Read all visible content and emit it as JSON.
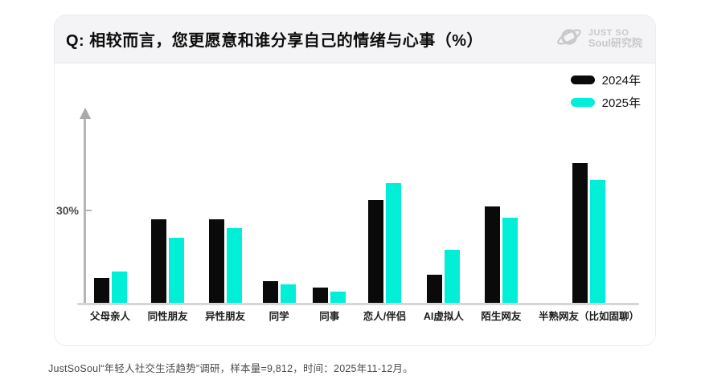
{
  "header": {
    "title": "Q: 相较而言，您更愿意和谁分享自己的情绪与心事（%）",
    "brand_line1": "JUST SO",
    "brand_line2": "Soul研究院"
  },
  "chart_data": {
    "type": "bar",
    "title": "Q: 相较而言，您更愿意和谁分享自己的情绪与心事（%）",
    "unit": "%",
    "categories": [
      "父母亲人",
      "同性朋友",
      "异性朋友",
      "同学",
      "同事",
      "恋人/伴侣",
      "AI虚拟人",
      "陌生网友",
      "半熟网友（比如固聊）"
    ],
    "series": [
      {
        "name": "2024年",
        "color": "#0a0a0a",
        "values": [
          8,
          27,
          27,
          7,
          5,
          33,
          9,
          31,
          45
        ]
      },
      {
        "name": "2025年",
        "color": "#00efd6",
        "values": [
          10,
          21,
          24,
          6,
          3.5,
          38.5,
          17,
          27.5,
          39.5
        ]
      }
    ],
    "y_axis": {
      "tick_label": "30%",
      "tick_value": 30,
      "ylim": [
        0,
        48
      ],
      "grid": false
    },
    "legend_position": "top-right"
  },
  "footer": {
    "note": "JustSoSoul“年轻人社交生活趋势”调研，样本量=9,812，时间：2025年11-12月。"
  }
}
